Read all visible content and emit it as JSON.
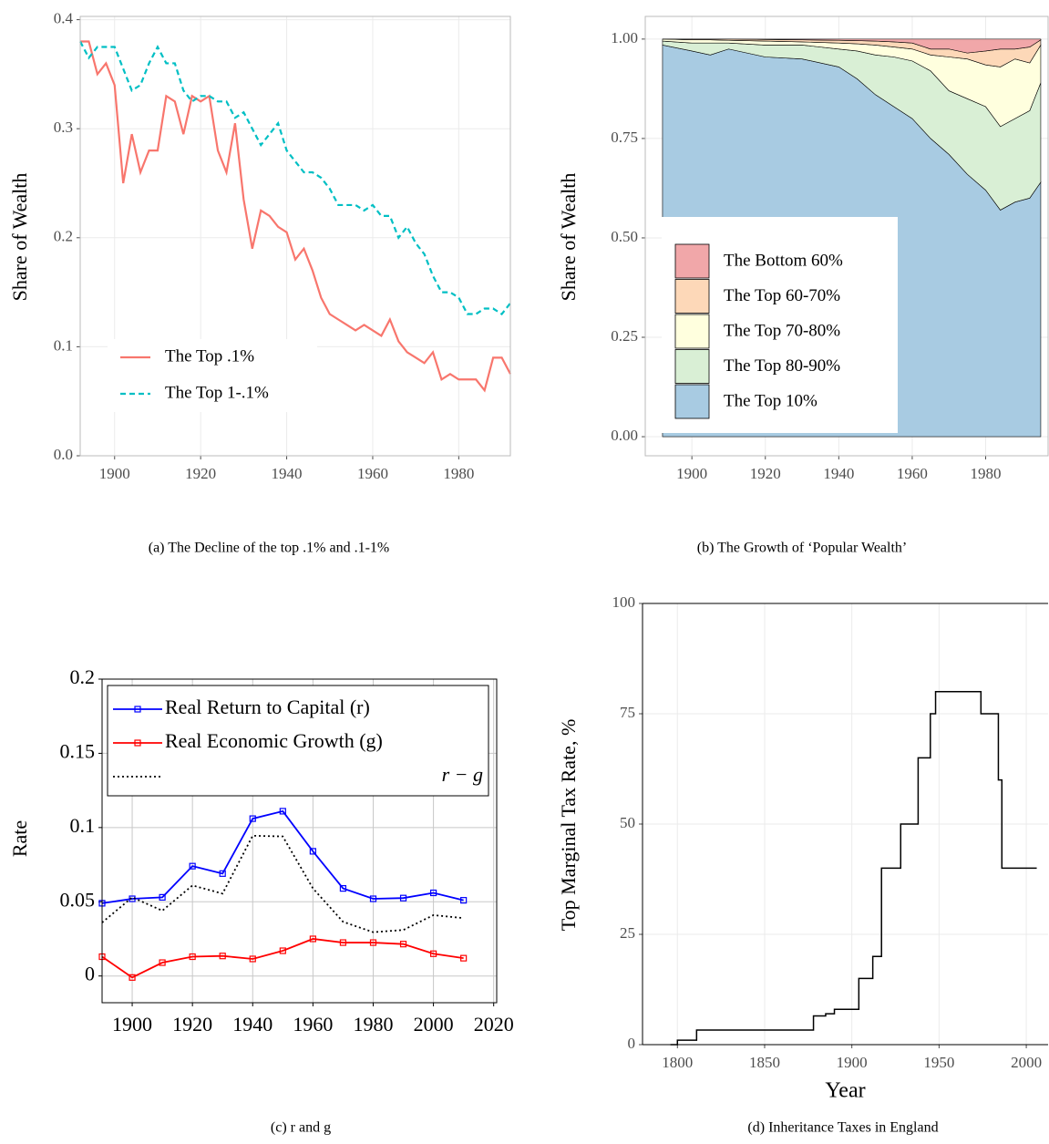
{
  "chart_data": [
    {
      "type": "line",
      "caption": "(a) The Decline of the top .1% and .1-1%",
      "ylabel": "Share of Wealth",
      "x": [
        1892,
        1894,
        1896,
        1898,
        1900,
        1902,
        1904,
        1906,
        1908,
        1910,
        1912,
        1914,
        1916,
        1918,
        1920,
        1922,
        1924,
        1926,
        1928,
        1930,
        1932,
        1934,
        1936,
        1938,
        1940,
        1942,
        1944,
        1946,
        1948,
        1950,
        1952,
        1954,
        1956,
        1958,
        1960,
        1962,
        1964,
        1966,
        1968,
        1970,
        1972,
        1974,
        1976,
        1978,
        1980,
        1982,
        1984,
        1986,
        1988,
        1990,
        1992
      ],
      "series": [
        {
          "name": "The Top .1%",
          "color": "#f8766d",
          "style": "solid",
          "values": [
            0.38,
            0.38,
            0.35,
            0.36,
            0.34,
            0.25,
            0.295,
            0.26,
            0.28,
            0.28,
            0.33,
            0.325,
            0.295,
            0.33,
            0.325,
            0.33,
            0.28,
            0.26,
            0.305,
            0.235,
            0.19,
            0.225,
            0.22,
            0.21,
            0.205,
            0.18,
            0.19,
            0.17,
            0.145,
            0.13,
            0.125,
            0.12,
            0.115,
            0.12,
            0.115,
            0.11,
            0.125,
            0.105,
            0.095,
            0.09,
            0.085,
            0.095,
            0.07,
            0.075,
            0.07,
            0.07,
            0.07,
            0.06,
            0.09,
            0.09,
            0.075
          ]
        },
        {
          "name": "The Top 1-.1%",
          "color": "#00bfc4",
          "style": "dashed",
          "values": [
            0.38,
            0.365,
            0.375,
            0.375,
            0.375,
            0.355,
            0.335,
            0.34,
            0.36,
            0.375,
            0.36,
            0.36,
            0.335,
            0.325,
            0.33,
            0.33,
            0.325,
            0.325,
            0.31,
            0.315,
            0.3,
            0.285,
            0.295,
            0.305,
            0.28,
            0.27,
            0.26,
            0.26,
            0.255,
            0.245,
            0.23,
            0.23,
            0.23,
            0.225,
            0.23,
            0.22,
            0.22,
            0.2,
            0.21,
            0.195,
            0.185,
            0.165,
            0.15,
            0.15,
            0.145,
            0.13,
            0.13,
            0.135,
            0.135,
            0.13,
            0.14
          ]
        }
      ],
      "xlim": [
        1892,
        1992
      ],
      "ylim": [
        0,
        0.403
      ],
      "xticks": [
        1900,
        1920,
        1940,
        1960,
        1980
      ],
      "yticks": [
        {
          "value": 0,
          "label": "0.0"
        },
        0.1,
        0.2,
        0.3,
        {
          "value": 0.4,
          "label": "0.4"
        }
      ],
      "grid": true
    },
    {
      "type": "area",
      "caption": "(b) The Growth of ‘Popular Wealth’",
      "ylabel": "Share of Wealth",
      "x": [
        1892,
        1900,
        1905,
        1910,
        1920,
        1930,
        1940,
        1945,
        1950,
        1955,
        1960,
        1965,
        1970,
        1975,
        1980,
        1984,
        1988,
        1992,
        1995
      ],
      "series": [
        {
          "name": "The Bottom 60%",
          "color": "#f1a7a9",
          "values": [
            0,
            0,
            0,
            0,
            0.001,
            0.002,
            0.003,
            0.004,
            0.005,
            0.007,
            0.01,
            0.025,
            0.025,
            0.035,
            0.03,
            0.025,
            0.025,
            0.02,
            0.002
          ]
        },
        {
          "name": "The Top 60-70%",
          "color": "#fdd8b8",
          "values": [
            0,
            0.002,
            0.002,
            0.003,
            0.004,
            0.005,
            0.007,
            0.008,
            0.01,
            0.013,
            0.015,
            0.015,
            0.02,
            0.015,
            0.035,
            0.045,
            0.025,
            0.04,
            0.013
          ]
        },
        {
          "name": "The Top 70-80%",
          "color": "#ffffde",
          "values": [
            0.005,
            0.008,
            0.008,
            0.007,
            0.01,
            0.008,
            0.015,
            0.018,
            0.025,
            0.025,
            0.03,
            0.04,
            0.085,
            0.1,
            0.105,
            0.15,
            0.15,
            0.12,
            0.095
          ]
        },
        {
          "name": "The Top 80-90%",
          "color": "#d9efd5",
          "values": [
            0.01,
            0.02,
            0.03,
            0.015,
            0.03,
            0.035,
            0.045,
            0.07,
            0.1,
            0.125,
            0.145,
            0.17,
            0.16,
            0.19,
            0.21,
            0.21,
            0.21,
            0.22,
            0.25
          ]
        },
        {
          "name": "The Top 10%",
          "color": "#a8cbe2",
          "values": [
            0.985,
            0.97,
            0.96,
            0.975,
            0.955,
            0.95,
            0.93,
            0.9,
            0.86,
            0.83,
            0.8,
            0.75,
            0.71,
            0.66,
            0.62,
            0.57,
            0.59,
            0.6,
            0.64
          ]
        }
      ],
      "xlim": [
        1887.3,
        1997
      ],
      "ylim": [
        -0.048,
        1.057
      ],
      "xticks": [
        1900,
        1920,
        1940,
        1960,
        1980
      ],
      "yticks": [
        {
          "value": 0,
          "label": "0.00"
        },
        0.25,
        {
          "value": 0.5,
          "label": "0.50"
        },
        0.75,
        {
          "value": 1,
          "label": "1.00"
        }
      ],
      "grid": true
    },
    {
      "type": "line",
      "caption": "(c) r and g",
      "ylabel": "Rate",
      "x": [
        1890,
        1900,
        1910,
        1920,
        1930,
        1940,
        1950,
        1960,
        1970,
        1980,
        1990,
        2000,
        2010
      ],
      "series": [
        {
          "name": "Real Return to Capital (r)",
          "color": "#0000ff",
          "style": "solid",
          "marker": "square",
          "values": [
            0.049,
            0.052,
            0.053,
            0.074,
            0.069,
            0.106,
            0.111,
            0.084,
            0.059,
            0.052,
            0.0525,
            0.056,
            0.051
          ]
        },
        {
          "name": "Real Economic Growth (g)",
          "color": "#ff0000",
          "style": "solid",
          "marker": "square",
          "values": [
            0.013,
            -0.001,
            0.009,
            0.013,
            0.0135,
            0.0115,
            0.017,
            0.025,
            0.0225,
            0.0225,
            0.0215,
            0.015,
            0.012
          ]
        },
        {
          "name": "r − g",
          "color": "#000000",
          "style": "dotted",
          "values": [
            0.036,
            0.053,
            0.044,
            0.061,
            0.0555,
            0.0945,
            0.094,
            0.059,
            0.0365,
            0.0295,
            0.031,
            0.041,
            0.039
          ]
        }
      ],
      "xlim": [
        1890,
        2021
      ],
      "ylim": [
        -0.018,
        0.2
      ],
      "xticks": [
        1900,
        1920,
        1940,
        1960,
        1980,
        2000,
        2020
      ],
      "yticks": [
        0,
        0.05,
        0.1,
        0.15,
        0.2
      ],
      "grid": true
    },
    {
      "type": "step",
      "caption": "(d) Inheritance Taxes in England",
      "ylabel": "Top Marginal Tax Rate, %",
      "xlabel": "Year",
      "x": [
        1796,
        1800,
        1811,
        1878,
        1885,
        1890,
        1904,
        1912,
        1917,
        1928,
        1938,
        1945,
        1948,
        1974,
        1984,
        1986,
        2006
      ],
      "values": [
        0,
        1,
        3.3,
        6.5,
        7,
        8,
        15,
        20,
        40,
        50,
        65,
        75,
        80,
        75,
        60,
        40,
        40
      ],
      "color": "#000000",
      "xlim": [
        1780,
        2012.5
      ],
      "ylim": [
        0,
        100
      ],
      "xticks": [
        1800,
        1850,
        1900,
        1950,
        2000
      ],
      "yticks": [
        0,
        25,
        50,
        75,
        100
      ],
      "grid": true
    }
  ]
}
